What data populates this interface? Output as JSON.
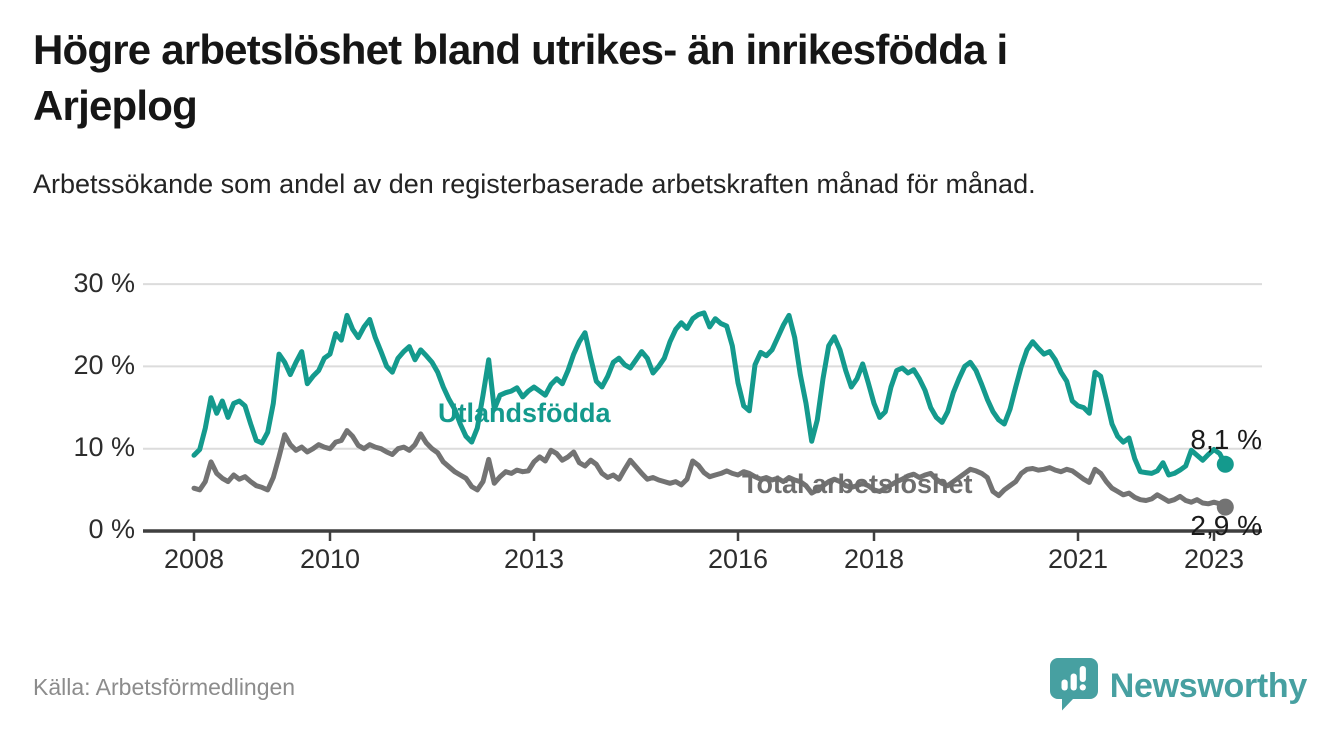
{
  "header": {
    "title_line1": "Högre arbetslöshet bland utrikes- än inrikesfödda i",
    "title_line2": "Arjeplog",
    "subtitle": "Arbetssökande som andel av den registerbaserade arbetskraften månad för månad."
  },
  "footer": {
    "source": "Källa: Arbetsförmedlingen",
    "brand_name": "Newsworthy",
    "brand_icon": "newsworthy-speech-bubble-bar-chart-icon",
    "brand_color": "#47a0a1"
  },
  "chart_data": {
    "type": "line",
    "title": "Högre arbetslöshet bland utrikes- än inrikesfödda i Arjeplog",
    "subtitle": "Arbetssökande som andel av den registerbaserade arbetskraften månad för månad.",
    "x_start": "2008-01",
    "x_end": "2023-03",
    "frequency": "monthly",
    "ylim": [
      0,
      30
    ],
    "grid": "horizontal",
    "axis_color": "#3f3f3f",
    "grid_color": "#dcdcdc",
    "yticks": [
      {
        "value": 30,
        "label": "30 %"
      },
      {
        "value": 20,
        "label": "20 %"
      },
      {
        "value": 10,
        "label": "10 %"
      },
      {
        "value": 0,
        "label": "0 %"
      }
    ],
    "xticks": [
      {
        "year": 2008,
        "label": "2008"
      },
      {
        "year": 2010,
        "label": "2010"
      },
      {
        "year": 2013,
        "label": "2013"
      },
      {
        "year": 2016,
        "label": "2016"
      },
      {
        "year": 2018,
        "label": "2018"
      },
      {
        "year": 2021,
        "label": "2021"
      },
      {
        "year": 2023,
        "label": "2023"
      }
    ],
    "series": [
      {
        "name": "Utlandsfödda",
        "label": "Utlandsfödda",
        "color": "#149a8d",
        "end_label": "8,1 %",
        "end_value": 8.1,
        "values": [
          9.2,
          9.9,
          12.5,
          16.2,
          14.3,
          15.8,
          13.8,
          15.5,
          15.8,
          15.2,
          13.0,
          11.0,
          10.7,
          12.0,
          15.5,
          21.5,
          20.5,
          19.0,
          20.5,
          21.8,
          17.9,
          18.8,
          19.5,
          21.0,
          21.5,
          24.0,
          23.2,
          26.2,
          24.5,
          23.5,
          24.8,
          25.7,
          23.5,
          21.8,
          20.0,
          19.3,
          21.0,
          21.8,
          22.4,
          20.8,
          22.0,
          21.3,
          20.5,
          19.3,
          17.5,
          16.0,
          14.8,
          13.0,
          11.5,
          10.8,
          12.5,
          16.5,
          20.8,
          14.8,
          16.5,
          16.8,
          17.0,
          17.4,
          16.3,
          17.0,
          17.5,
          17.0,
          16.5,
          17.8,
          18.5,
          17.9,
          19.5,
          21.5,
          23.0,
          24.1,
          21.0,
          18.2,
          17.5,
          18.8,
          20.5,
          21.0,
          20.2,
          19.8,
          20.8,
          21.8,
          21.0,
          19.2,
          20.0,
          21.0,
          23.0,
          24.5,
          25.3,
          24.6,
          25.8,
          26.3,
          26.5,
          24.8,
          25.8,
          25.2,
          24.9,
          22.5,
          18.0,
          15.2,
          14.6,
          20.2,
          21.7,
          21.3,
          22.0,
          23.5,
          25.0,
          26.2,
          23.5,
          19.0,
          15.5,
          10.9,
          13.5,
          18.5,
          22.5,
          23.6,
          22.0,
          19.5,
          17.5,
          18.5,
          20.3,
          18.0,
          15.5,
          13.8,
          14.5,
          17.5,
          19.5,
          19.8,
          19.2,
          19.6,
          18.5,
          17.1,
          15.0,
          13.8,
          13.2,
          14.5,
          16.8,
          18.5,
          20.0,
          20.5,
          19.5,
          17.8,
          16.0,
          14.5,
          13.5,
          13.0,
          14.8,
          17.5,
          20.0,
          22.0,
          23.0,
          22.2,
          21.5,
          21.8,
          20.8,
          19.3,
          18.2,
          15.8,
          15.2,
          15.0,
          14.3,
          19.3,
          18.8,
          16.0,
          13.0,
          11.5,
          10.8,
          11.3,
          8.8,
          7.2,
          7.1,
          7.0,
          7.3,
          8.3,
          6.8,
          7.0,
          7.4,
          7.9,
          9.8,
          9.2,
          8.6,
          9.3,
          9.9,
          9.4,
          8.1
        ]
      },
      {
        "name": "Total arbetslöshet",
        "label": "Total arbetslöshet",
        "color": "#737373",
        "end_label": "2,9 %",
        "end_value": 2.9,
        "values": [
          5.2,
          5.0,
          6.0,
          8.4,
          7.0,
          6.4,
          6.0,
          6.8,
          6.3,
          6.6,
          6.0,
          5.5,
          5.3,
          5.0,
          6.5,
          9.0,
          11.7,
          10.5,
          9.8,
          10.2,
          9.6,
          10.0,
          10.5,
          10.2,
          10.0,
          10.8,
          11.0,
          12.2,
          11.5,
          10.4,
          10.0,
          10.5,
          10.2,
          10.0,
          9.6,
          9.3,
          10.0,
          10.2,
          9.8,
          10.5,
          11.8,
          10.7,
          10.0,
          9.5,
          8.4,
          7.8,
          7.2,
          6.8,
          6.4,
          5.4,
          5.0,
          6.0,
          8.7,
          5.8,
          6.6,
          7.2,
          7.0,
          7.4,
          7.2,
          7.3,
          8.4,
          9.0,
          8.5,
          9.8,
          9.4,
          8.6,
          9.0,
          9.6,
          8.3,
          7.9,
          8.6,
          8.1,
          7.0,
          6.5,
          6.8,
          6.3,
          7.5,
          8.6,
          7.8,
          7.0,
          6.3,
          6.5,
          6.2,
          6.0,
          5.8,
          6.0,
          5.6,
          6.3,
          8.5,
          8.0,
          7.1,
          6.6,
          6.8,
          7.0,
          7.3,
          7.0,
          6.8,
          7.2,
          7.0,
          6.6,
          6.3,
          6.5,
          6.2,
          6.4,
          6.0,
          6.5,
          6.2,
          6.0,
          5.5,
          4.6,
          5.0,
          5.5,
          6.0,
          6.3,
          6.0,
          5.5,
          5.3,
          5.5,
          5.8,
          5.5,
          5.0,
          4.8,
          5.2,
          5.6,
          6.0,
          6.3,
          6.7,
          6.9,
          6.5,
          6.8,
          7.0,
          6.3,
          5.8,
          5.5,
          6.0,
          6.5,
          7.0,
          7.5,
          7.3,
          7.0,
          6.5,
          4.8,
          4.3,
          5.0,
          5.5,
          6.0,
          7.0,
          7.5,
          7.6,
          7.4,
          7.5,
          7.7,
          7.4,
          7.2,
          7.5,
          7.3,
          6.8,
          6.3,
          5.9,
          7.5,
          7.0,
          6.0,
          5.2,
          4.8,
          4.4,
          4.6,
          4.1,
          3.8,
          3.7,
          3.9,
          4.4,
          4.0,
          3.6,
          3.8,
          4.2,
          3.7,
          3.5,
          3.8,
          3.4,
          3.3,
          3.5,
          3.3,
          2.9
        ]
      }
    ]
  }
}
